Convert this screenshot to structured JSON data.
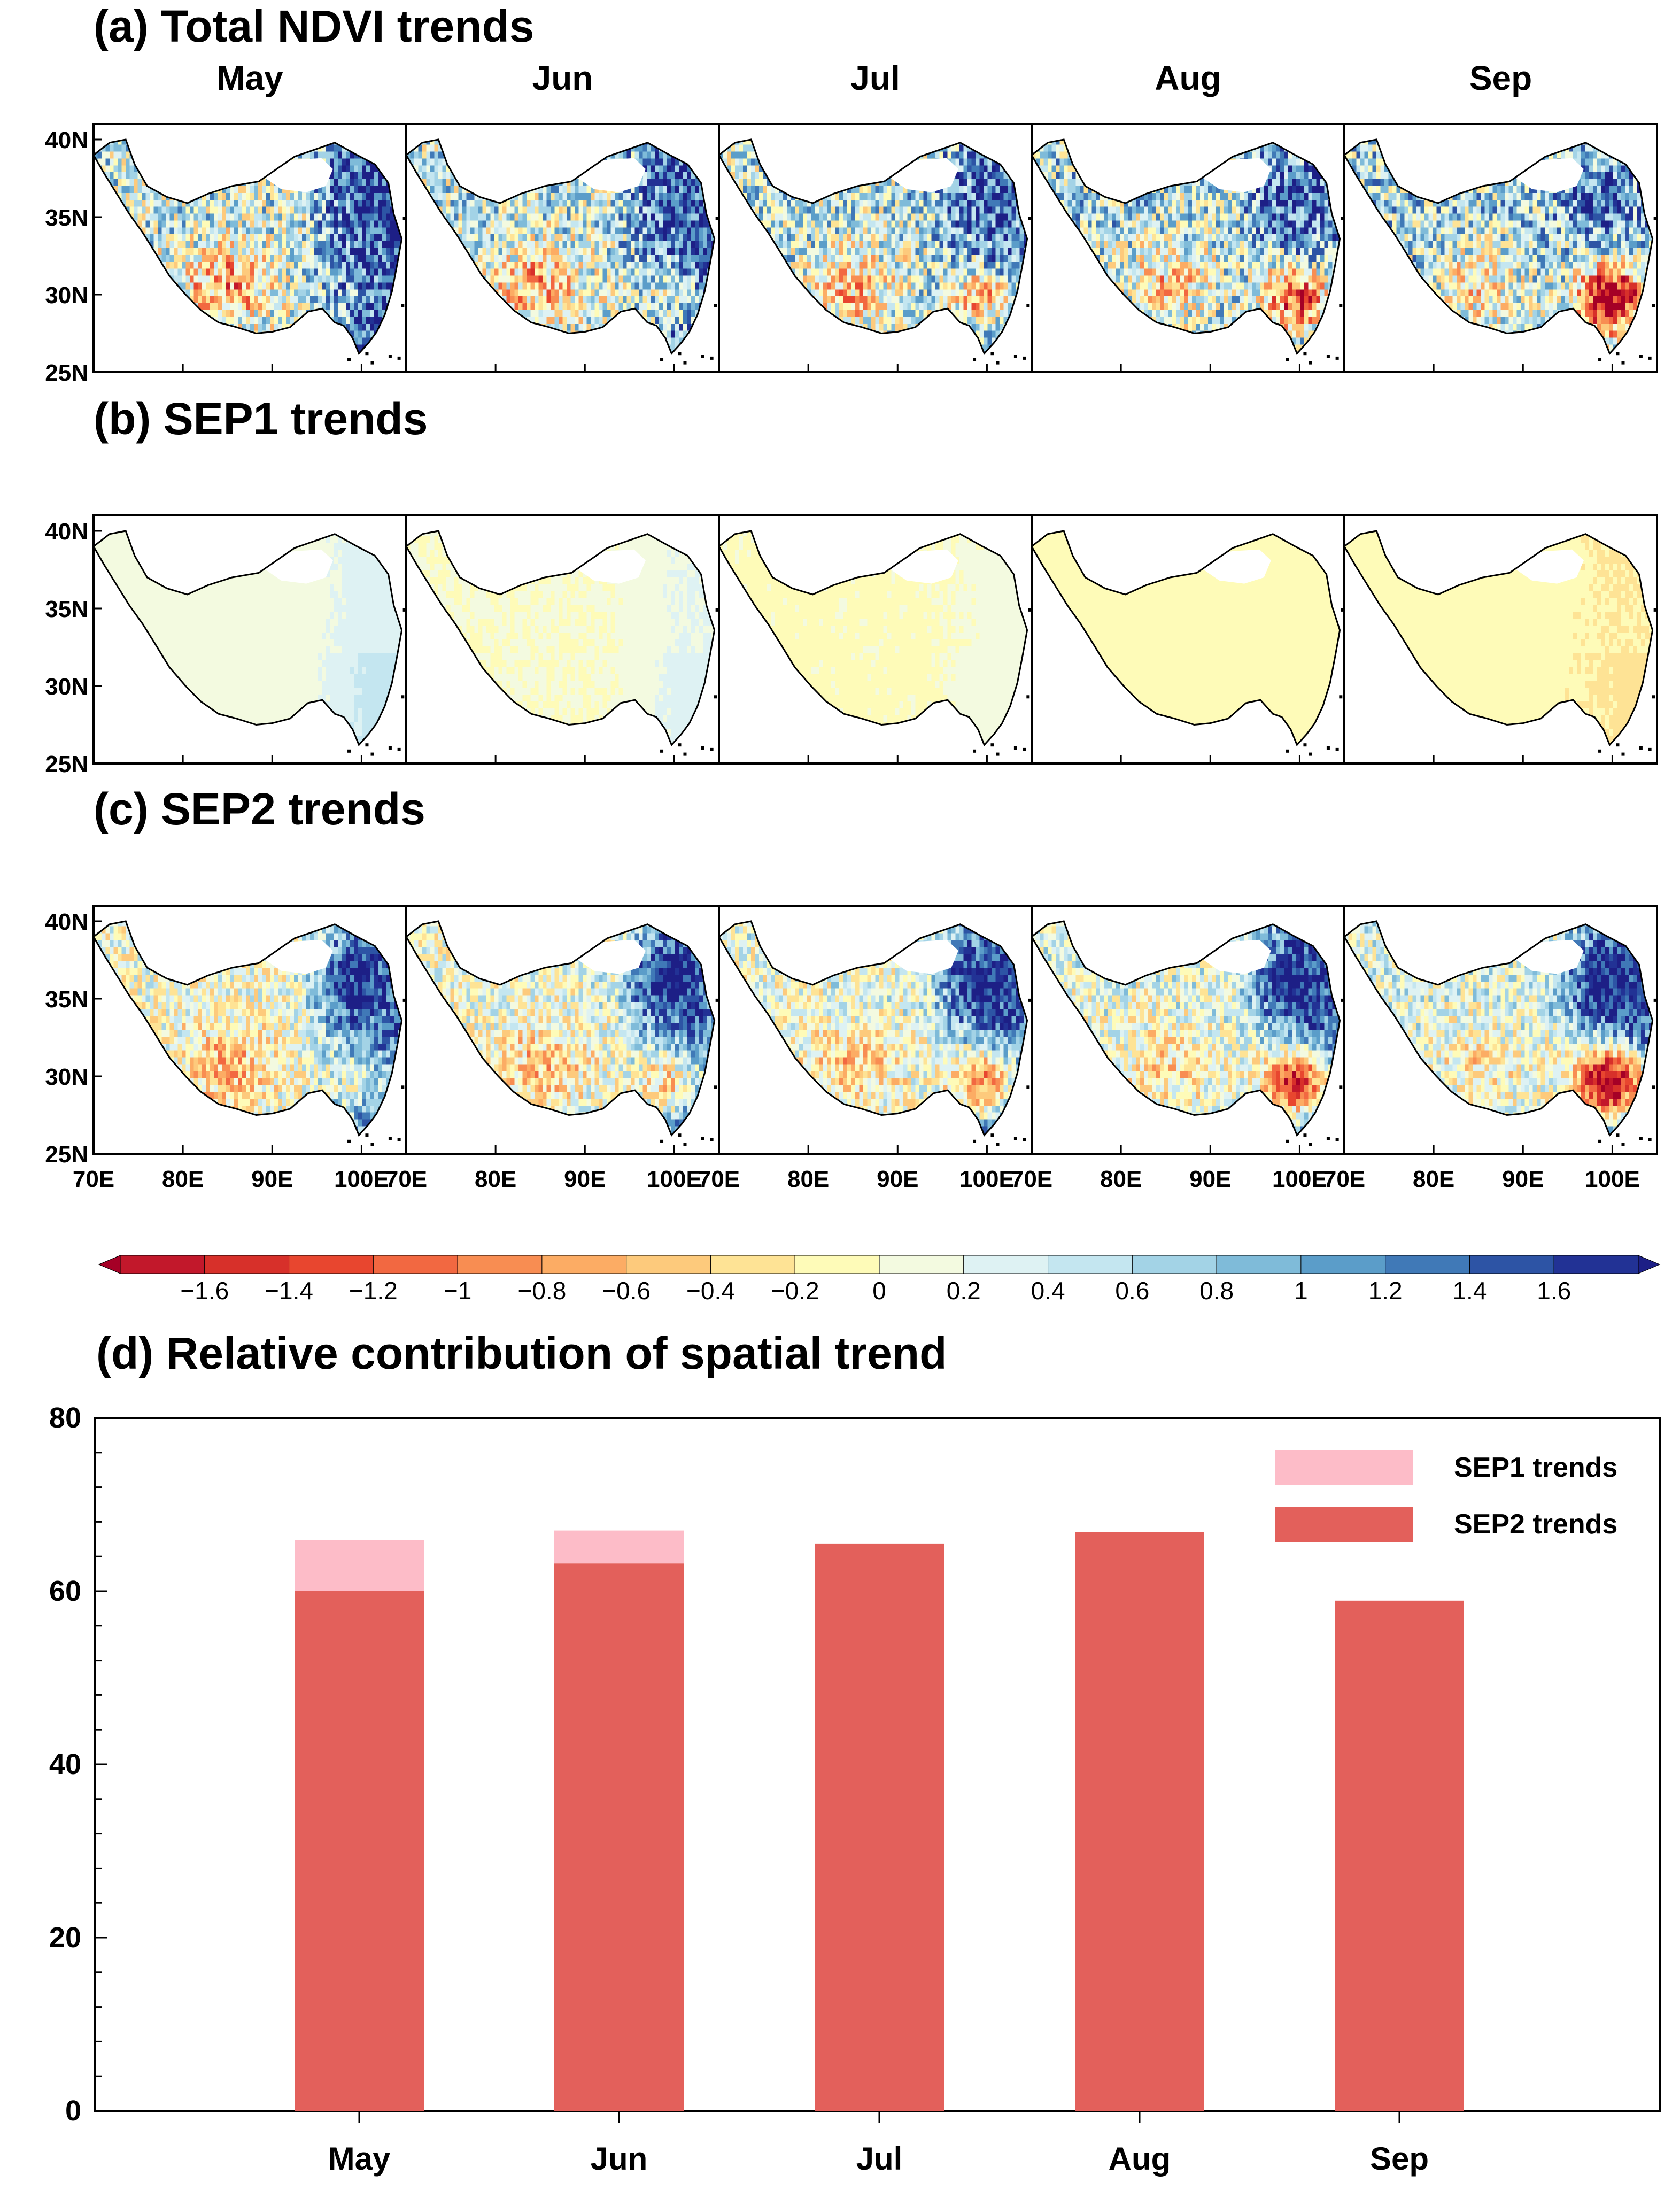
{
  "maps": {
    "months": [
      "May",
      "Jun",
      "Jul",
      "Aug",
      "Sep"
    ],
    "panels": [
      {
        "id": "a",
        "title": "(a) Total NDVI trends",
        "pattern": "total"
      },
      {
        "id": "b",
        "title": "(b) SEP1 trends",
        "pattern": "sep1"
      },
      {
        "id": "c",
        "title": "(c) SEP2 trends",
        "pattern": "sep2"
      }
    ],
    "lat_ticks": [
      "40N",
      "35N",
      "30N",
      "25N"
    ],
    "lat_values": [
      40,
      35,
      30,
      25
    ],
    "lat_range": [
      25,
      41
    ],
    "lon_range": [
      70,
      105
    ],
    "lon_ticks": [
      [
        "70E",
        "80E",
        "90E",
        "100E"
      ],
      [
        "70E",
        "80E",
        "90E",
        "100E"
      ],
      [
        "70E",
        "80E",
        "90E",
        "100E"
      ],
      [
        "70E",
        "80E",
        "90E",
        "100E"
      ],
      [
        "70E",
        "80E",
        "90E",
        "100E"
      ]
    ],
    "lon_values": [
      70,
      80,
      90,
      100
    ]
  },
  "colorbar": {
    "labels": [
      "−1.6",
      "−1.4",
      "−1.2",
      "−1",
      "−0.8",
      "−0.6",
      "−0.4",
      "−0.2",
      "0",
      "0.2",
      "0.4",
      "0.6",
      "0.8",
      "1",
      "1.2",
      "1.4",
      "1.6"
    ],
    "values": [
      -1.6,
      -1.4,
      -1.2,
      -1,
      -0.8,
      -0.6,
      -0.4,
      -0.2,
      0,
      0.2,
      0.4,
      0.6,
      0.8,
      1,
      1.2,
      1.4,
      1.6
    ],
    "colors": [
      "#a50026",
      "#c2182b",
      "#d7302a",
      "#e8462f",
      "#f26841",
      "#f88d52",
      "#fcac64",
      "#fdca7c",
      "#fee395",
      "#fefbb8",
      "#f3fae0",
      "#def2f3",
      "#c4e6f0",
      "#a3d3e6",
      "#7fbbd9",
      "#5b9dc9",
      "#4079b7",
      "#2d54a5",
      "#223295",
      "#1d1f86"
    ]
  },
  "chart_data": {
    "type": "bar",
    "title": "(d) Relative contribution of spatial trend",
    "categories": [
      "May",
      "Jun",
      "Jul",
      "Aug",
      "Sep"
    ],
    "series": [
      {
        "name": "SEP2 trends",
        "values": [
          60.0,
          63.2,
          65.5,
          66.8,
          58.9
        ],
        "color": "#e3605b"
      },
      {
        "name": "SEP1 trends",
        "values": [
          5.9,
          3.8,
          0.0,
          0.0,
          0.0
        ],
        "color": "#fdbcc8"
      }
    ],
    "stacked": true,
    "ylim": [
      0,
      80
    ],
    "yticks": [
      0,
      20,
      40,
      60,
      80
    ],
    "ytick_labels": [
      "0",
      "20",
      "40",
      "60",
      "80"
    ],
    "xlabel": "",
    "ylabel": "",
    "legend": {
      "position": "top-right",
      "entries": [
        "SEP1 trends",
        "SEP2 trends"
      ]
    }
  }
}
